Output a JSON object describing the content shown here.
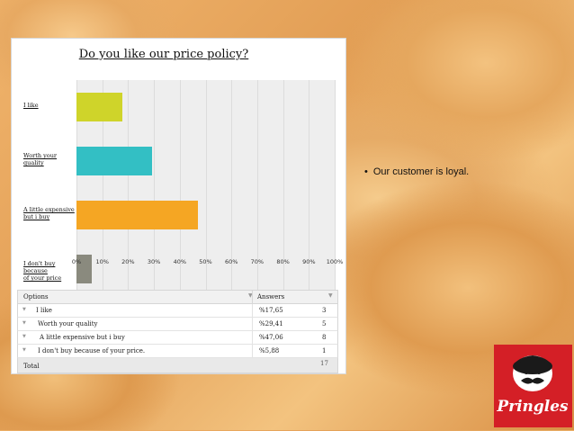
{
  "slide": {
    "bullet": "Our customer is loyal.",
    "bullet_marker": "•"
  },
  "survey": {
    "title": "Do you like our price policy?",
    "table": {
      "header_options": "Options",
      "header_answers": "Answers",
      "rows": [
        {
          "option": "I like",
          "percent": "%17,65",
          "count": "3"
        },
        {
          "option": "Worth your quality",
          "percent": "%29,41",
          "count": "5"
        },
        {
          "option": "A little expensive but i buy",
          "percent": "%47,06",
          "count": "8"
        },
        {
          "option": "I don't buy because of your price.",
          "percent": "%5,88",
          "count": "1"
        }
      ],
      "total_label": "Total",
      "total_count": "17"
    }
  },
  "chart_data": {
    "type": "bar",
    "orientation": "horizontal",
    "title": "Do you like our price policy?",
    "categories": [
      "I like",
      "Worth your quality",
      "A little expensive but i buy",
      "I don't buy because of your price"
    ],
    "category_labels_lines": [
      [
        "I like"
      ],
      [
        "Worth your",
        "quality"
      ],
      [
        "A little expensive",
        "but i buy"
      ],
      [
        "I don't buy because",
        "of your price"
      ]
    ],
    "values": [
      17.65,
      29.41,
      47.06,
      5.88
    ],
    "colors": [
      "#cfd42a",
      "#33bfc4",
      "#f5a623",
      "#8a8a7e"
    ],
    "xlim": [
      0,
      100
    ],
    "xticks": [
      "0%",
      "10%",
      "20%",
      "30%",
      "40%",
      "50%",
      "60%",
      "70%",
      "80%",
      "90%",
      "100%"
    ],
    "grid": true,
    "xlabel": "",
    "ylabel": ""
  },
  "colors": {
    "logo_red": "#d41f26"
  },
  "logo": {
    "text": "Pringles"
  }
}
